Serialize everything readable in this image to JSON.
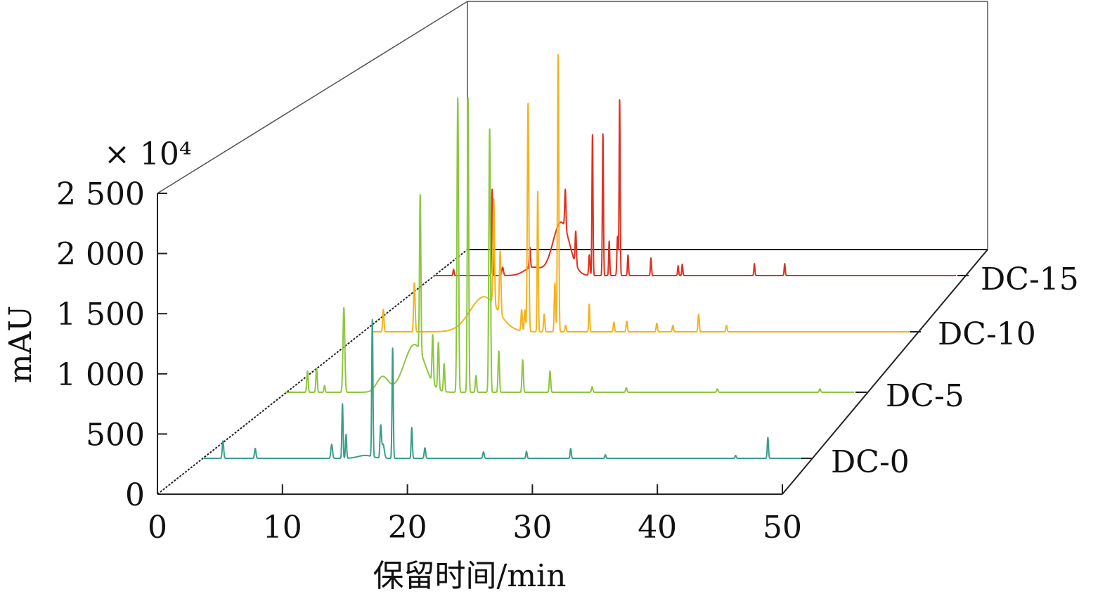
{
  "chart_data": {
    "type": "line",
    "subtype": "3d-waterfall",
    "xlabel": "保留时间/min",
    "ylabel": "mAU",
    "y_multiplier": "× 10⁴",
    "xlim": [
      0,
      50
    ],
    "ylim": [
      0,
      2500
    ],
    "xticks": [
      "0",
      "10",
      "20",
      "30",
      "40",
      "50"
    ],
    "yticks": [
      "0",
      "500",
      "1 000",
      "1 500",
      "2 000",
      "2 500"
    ],
    "series": [
      {
        "name": "DC-0",
        "color": "#3a9e8c",
        "peaks": [
          [
            1.6,
            150,
            0.06
          ],
          [
            4.3,
            85,
            0.06
          ],
          [
            10.7,
            120,
            0.07
          ],
          [
            11.6,
            470,
            0.05
          ],
          [
            11.9,
            205,
            0.05
          ],
          [
            14.1,
            1180,
            0.05
          ],
          [
            14.8,
            270,
            0.06
          ],
          [
            15.0,
            120,
            0.1
          ],
          [
            15.8,
            950,
            0.05
          ],
          [
            17.4,
            265,
            0.05
          ],
          [
            18.5,
            90,
            0.06
          ],
          [
            23.4,
            55,
            0.06
          ],
          [
            27.0,
            60,
            0.05
          ],
          [
            30.7,
            85,
            0.05
          ],
          [
            33.6,
            30,
            0.05
          ],
          [
            44.5,
            25,
            0.05
          ],
          [
            47.2,
            180,
            0.05
          ],
          [
            13.5,
            25,
            0.6
          ]
        ]
      },
      {
        "name": "DC-5",
        "color": "#8dc63f",
        "peaks": [
          [
            2.0,
            190,
            0.06
          ],
          [
            2.8,
            215,
            0.06
          ],
          [
            3.5,
            60,
            0.05
          ],
          [
            5.2,
            760,
            0.08
          ],
          [
            8.6,
            140,
            0.5
          ],
          [
            11.4,
            430,
            0.9
          ],
          [
            11.9,
            1410,
            0.06
          ],
          [
            13.0,
            430,
            0.06
          ],
          [
            13.5,
            420,
            0.06
          ],
          [
            14.0,
            250,
            0.06
          ],
          [
            15.2,
            2650,
            0.07
          ],
          [
            16.1,
            2650,
            0.06
          ],
          [
            16.8,
            150,
            0.06
          ],
          [
            18.0,
            2370,
            0.07
          ],
          [
            18.8,
            370,
            0.06
          ],
          [
            20.9,
            290,
            0.06
          ],
          [
            23.3,
            190,
            0.06
          ],
          [
            27.0,
            50,
            0.06
          ],
          [
            30.0,
            40,
            0.06
          ],
          [
            38.0,
            30,
            0.06
          ],
          [
            47.0,
            30,
            0.06
          ]
        ]
      },
      {
        "name": "DC-10",
        "color": "#f5b21b",
        "peaks": [
          [
            1.0,
            210,
            0.06
          ],
          [
            3.9,
            460,
            0.07
          ],
          [
            10.4,
            330,
            1.3
          ],
          [
            11.3,
            990,
            0.07
          ],
          [
            11.9,
            590,
            0.07
          ],
          [
            13.9,
            200,
            0.06
          ],
          [
            14.2,
            200,
            0.06
          ],
          [
            14.5,
            2150,
            0.07
          ],
          [
            15.4,
            1320,
            0.05
          ],
          [
            16.0,
            165,
            0.06
          ],
          [
            17.0,
            460,
            0.06
          ],
          [
            17.3,
            2610,
            0.06
          ],
          [
            18.0,
            60,
            0.06
          ],
          [
            20.2,
            260,
            0.05
          ],
          [
            22.5,
            90,
            0.06
          ],
          [
            23.7,
            100,
            0.06
          ],
          [
            26.5,
            80,
            0.06
          ],
          [
            28.0,
            60,
            0.06
          ],
          [
            30.4,
            165,
            0.06
          ],
          [
            33.0,
            60,
            0.06
          ]
        ]
      },
      {
        "name": "DC-15",
        "color": "#e0301e",
        "peaks": [
          [
            1.9,
            60,
            0.05
          ],
          [
            5.6,
            840,
            0.05
          ],
          [
            6.6,
            80,
            0.08
          ],
          [
            9.2,
            200,
            0.06
          ],
          [
            9.5,
            80,
            0.8
          ],
          [
            12.2,
            520,
            0.8
          ],
          [
            12.6,
            380,
            0.06
          ],
          [
            13.6,
            320,
            0.06
          ],
          [
            14.9,
            200,
            0.06
          ],
          [
            15.2,
            1370,
            0.05
          ],
          [
            16.2,
            1380,
            0.05
          ],
          [
            16.8,
            335,
            0.05
          ],
          [
            17.6,
            380,
            0.06
          ],
          [
            17.8,
            1710,
            0.05
          ],
          [
            18.6,
            200,
            0.05
          ],
          [
            20.8,
            170,
            0.05
          ],
          [
            23.4,
            95,
            0.05
          ],
          [
            23.8,
            110,
            0.05
          ],
          [
            30.7,
            115,
            0.05
          ],
          [
            33.6,
            115,
            0.05
          ]
        ]
      }
    ]
  }
}
